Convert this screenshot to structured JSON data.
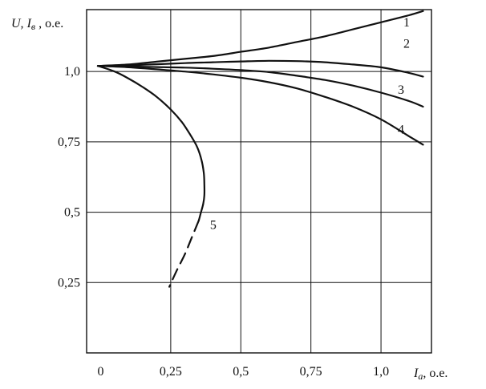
{
  "chart_data": {
    "type": "line",
    "title": "",
    "xlabel": {
      "var": "I",
      "sub": "a",
      "unit": ", о.е."
    },
    "ylabel": {
      "var1": "U, ",
      "var2": "I",
      "sub": "в",
      "unit": " , о.е."
    },
    "xlim": [
      -0.05,
      1.18
    ],
    "ylim": [
      0.0,
      1.22
    ],
    "grid": true,
    "x_ticks": [
      {
        "value": 0,
        "label": "0"
      },
      {
        "value": 0.25,
        "label": "0,25"
      },
      {
        "value": 0.5,
        "label": "0,5"
      },
      {
        "value": 0.75,
        "label": "0,75"
      },
      {
        "value": 1.0,
        "label": "1,0"
      }
    ],
    "y_ticks": [
      {
        "value": 0.25,
        "label": "0,25"
      },
      {
        "value": 0.5,
        "label": "0,5"
      },
      {
        "value": 0.75,
        "label": "0,75"
      },
      {
        "value": 1.0,
        "label": "1,0"
      }
    ],
    "series": [
      {
        "name": "1",
        "style": "solid",
        "x": [
          -0.01,
          0.1,
          0.2,
          0.3,
          0.4,
          0.5,
          0.6,
          0.7,
          0.8,
          0.9,
          1.0,
          1.1,
          1.15
        ],
        "y": [
          1.02,
          1.025,
          1.035,
          1.045,
          1.055,
          1.07,
          1.085,
          1.105,
          1.125,
          1.15,
          1.175,
          1.2,
          1.215
        ]
      },
      {
        "name": "2",
        "style": "solid",
        "x": [
          -0.01,
          0.1,
          0.2,
          0.3,
          0.4,
          0.5,
          0.6,
          0.7,
          0.8,
          0.9,
          1.0,
          1.1,
          1.15
        ],
        "y": [
          1.02,
          1.022,
          1.026,
          1.03,
          1.033,
          1.036,
          1.038,
          1.037,
          1.033,
          1.025,
          1.015,
          0.995,
          0.982
        ]
      },
      {
        "name": "3",
        "style": "solid",
        "x": [
          -0.01,
          0.1,
          0.2,
          0.3,
          0.4,
          0.5,
          0.6,
          0.7,
          0.8,
          0.9,
          1.0,
          1.1,
          1.15
        ],
        "y": [
          1.02,
          1.018,
          1.016,
          1.014,
          1.01,
          1.005,
          0.998,
          0.985,
          0.97,
          0.95,
          0.925,
          0.895,
          0.875
        ]
      },
      {
        "name": "4",
        "style": "solid",
        "x": [
          -0.01,
          0.1,
          0.2,
          0.3,
          0.4,
          0.5,
          0.6,
          0.7,
          0.8,
          0.9,
          1.0,
          1.1,
          1.15
        ],
        "y": [
          1.02,
          1.015,
          1.008,
          1.0,
          0.99,
          0.978,
          0.962,
          0.94,
          0.91,
          0.875,
          0.83,
          0.77,
          0.74
        ]
      },
      {
        "name": "5",
        "style": "solid",
        "x": [
          -0.01,
          0.05,
          0.1,
          0.15,
          0.2,
          0.25,
          0.29,
          0.32,
          0.345,
          0.36,
          0.368,
          0.37,
          0.37,
          0.366,
          0.358,
          0.35
        ],
        "y": [
          1.02,
          1.0,
          0.975,
          0.945,
          0.91,
          0.865,
          0.82,
          0.775,
          0.73,
          0.685,
          0.64,
          0.6,
          0.56,
          0.53,
          0.5,
          0.47
        ]
      },
      {
        "name": "5",
        "style": "dashed",
        "show_label": false,
        "x": [
          0.35,
          0.325,
          0.3,
          0.27,
          0.245
        ],
        "y": [
          0.47,
          0.41,
          0.35,
          0.29,
          0.235
        ]
      }
    ],
    "labels": [
      {
        "text": "1",
        "x": 1.08,
        "y": 1.16
      },
      {
        "text": "2",
        "x": 1.08,
        "y": 1.085
      },
      {
        "text": "3",
        "x": 1.06,
        "y": 0.92
      },
      {
        "text": "4",
        "x": 1.06,
        "y": 0.78
      },
      {
        "text": "5",
        "x": 0.39,
        "y": 0.44
      }
    ]
  }
}
